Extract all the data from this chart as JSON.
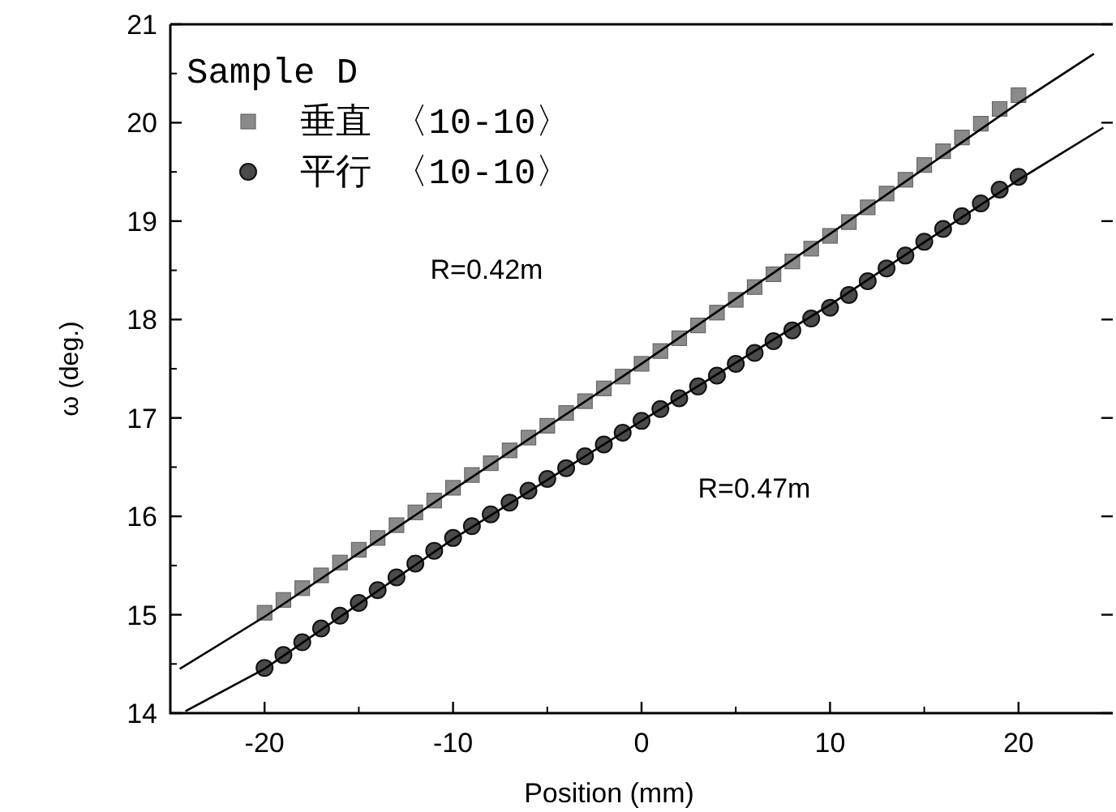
{
  "chart_data": {
    "type": "scatter",
    "xlabel": "Position (mm)",
    "ylabel": "ω (deg.)",
    "legend_title": "Sample D",
    "legend": "top left",
    "xlim": [
      -25,
      25
    ],
    "ylim": [
      14,
      21
    ],
    "xticks": [
      -20,
      -10,
      0,
      10,
      20
    ],
    "yticks": [
      14,
      15,
      16,
      17,
      18,
      19,
      20,
      21
    ],
    "grid": false,
    "series": [
      {
        "name": "垂直 〈10-10〉",
        "marker": "square",
        "color": "#8a8a8a",
        "x": [
          -20,
          -19,
          -18,
          -17,
          -16,
          -15,
          -14,
          -13,
          -12,
          -11,
          -10,
          -9,
          -8,
          -7,
          -6,
          -5,
          -4,
          -3,
          -2,
          -1,
          0,
          1,
          2,
          3,
          4,
          5,
          6,
          7,
          8,
          9,
          10,
          11,
          12,
          13,
          14,
          15,
          16,
          17,
          18,
          19,
          20
        ],
        "values": [
          15.02,
          15.15,
          15.27,
          15.4,
          15.53,
          15.66,
          15.78,
          15.91,
          16.04,
          16.16,
          16.29,
          16.42,
          16.54,
          16.67,
          16.8,
          16.92,
          17.05,
          17.17,
          17.3,
          17.42,
          17.55,
          17.68,
          17.81,
          17.94,
          18.07,
          18.2,
          18.33,
          18.46,
          18.59,
          18.72,
          18.85,
          18.99,
          19.14,
          19.28,
          19.42,
          19.57,
          19.71,
          19.85,
          19.99,
          20.14,
          20.28
        ]
      },
      {
        "name": "平行 〈10-10〉",
        "marker": "circle",
        "color": "#4a4a4a",
        "x": [
          -20,
          -19,
          -18,
          -17,
          -16,
          -15,
          -14,
          -13,
          -12,
          -11,
          -10,
          -9,
          -8,
          -7,
          -6,
          -5,
          -4,
          -3,
          -2,
          -1,
          0,
          1,
          2,
          3,
          4,
          5,
          6,
          7,
          8,
          9,
          10,
          11,
          12,
          13,
          14,
          15,
          16,
          17,
          18,
          19,
          20
        ],
        "values": [
          14.46,
          14.59,
          14.72,
          14.86,
          14.99,
          15.12,
          15.25,
          15.38,
          15.52,
          15.65,
          15.78,
          15.9,
          16.02,
          16.14,
          16.26,
          16.38,
          16.49,
          16.61,
          16.73,
          16.85,
          16.97,
          17.09,
          17.2,
          17.32,
          17.43,
          17.55,
          17.66,
          17.78,
          17.89,
          18.01,
          18.12,
          18.25,
          18.39,
          18.52,
          18.65,
          18.79,
          18.92,
          19.05,
          19.18,
          19.32,
          19.45
        ]
      },
      {
        "type": "line",
        "marker": "none",
        "line_style": "solid",
        "color": "#000000",
        "x": [
          -24.5,
          -20,
          -10,
          0,
          10,
          20,
          24
        ],
        "values": [
          14.45,
          14.98,
          16.27,
          17.55,
          18.87,
          20.2,
          20.7
        ]
      },
      {
        "type": "line",
        "marker": "none",
        "line_style": "solid",
        "color": "#000000",
        "x": [
          -24.2,
          -20,
          -10,
          0,
          10,
          20,
          24.5
        ],
        "values": [
          14.02,
          14.45,
          15.77,
          16.97,
          18.15,
          19.42,
          19.95
        ]
      }
    ],
    "annotations": [
      "R=0.42m",
      "R=0.47m"
    ]
  }
}
